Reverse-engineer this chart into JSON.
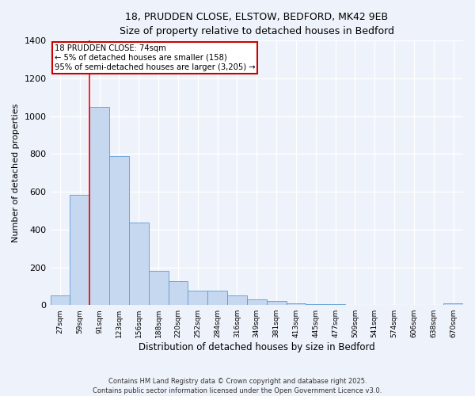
{
  "title_line1": "18, PRUDDEN CLOSE, ELSTOW, BEDFORD, MK42 9EB",
  "title_line2": "Size of property relative to detached houses in Bedford",
  "xlabel": "Distribution of detached houses by size in Bedford",
  "ylabel": "Number of detached properties",
  "categories": [
    "27sqm",
    "59sqm",
    "91sqm",
    "123sqm",
    "156sqm",
    "188sqm",
    "220sqm",
    "252sqm",
    "284sqm",
    "316sqm",
    "349sqm",
    "381sqm",
    "413sqm",
    "445sqm",
    "477sqm",
    "509sqm",
    "541sqm",
    "574sqm",
    "606sqm",
    "638sqm",
    "670sqm"
  ],
  "values": [
    50,
    585,
    1050,
    790,
    435,
    180,
    125,
    75,
    75,
    50,
    30,
    20,
    10,
    5,
    5,
    0,
    0,
    0,
    0,
    0,
    10
  ],
  "bar_color": "#c5d8f0",
  "bar_edge_color": "#5b9bd5",
  "red_line_x": 1.5,
  "annotation_title": "18 PRUDDEN CLOSE: 74sqm",
  "annotation_line1": "← 5% of detached houses are smaller (158)",
  "annotation_line2": "95% of semi-detached houses are larger (3,205) →",
  "annotation_box_color": "#ffffff",
  "annotation_box_edge": "#cc0000",
  "ylim": [
    0,
    1400
  ],
  "yticks": [
    0,
    200,
    400,
    600,
    800,
    1000,
    1200,
    1400
  ],
  "background_color": "#eef2fa",
  "grid_color": "#ffffff",
  "footer_line1": "Contains HM Land Registry data © Crown copyright and database right 2025.",
  "footer_line2": "Contains public sector information licensed under the Open Government Licence v3.0."
}
